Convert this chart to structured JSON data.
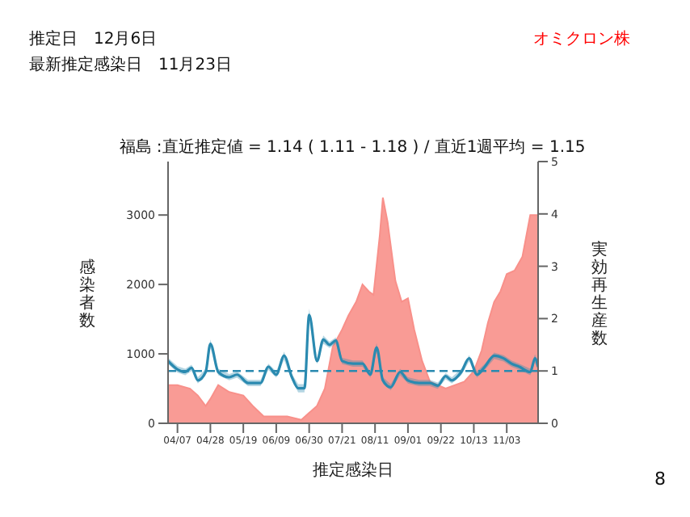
{
  "chart_data": {
    "type": "area",
    "title": "福島 :直近推定値 = 1.14 ( 1.11 - 1.18 ) / 直近1週平均 = 1.15",
    "xlabel": "推定感染日",
    "ylabel": "感染者数",
    "y2label": "実効再生産数",
    "annotations": [
      "推定日　12月6日",
      "最新推定感染日　11月23日",
      "オミクロン株",
      "8"
    ],
    "xlim": [
      "--04-01",
      "--11-23"
    ],
    "xticks": [
      {
        "value": "--04-07",
        "label": "04/07"
      },
      {
        "value": "--04-28",
        "label": "04/28"
      },
      {
        "value": "--05-19",
        "label": "05/19"
      },
      {
        "value": "--06-09",
        "label": "06/09"
      },
      {
        "value": "--06-30",
        "label": "06/30"
      },
      {
        "value": "--07-21",
        "label": "07/21"
      },
      {
        "value": "--08-11",
        "label": "08/11"
      },
      {
        "value": "--09-01",
        "label": "09/01"
      },
      {
        "value": "--09-22",
        "label": "09/22"
      },
      {
        "value": "--10-13",
        "label": "10/13"
      },
      {
        "value": "--11-03",
        "label": "11/03"
      }
    ],
    "ylim": [
      0,
      3770
    ],
    "yticks": [
      0,
      1000,
      2000,
      3000
    ],
    "y2lim": [
      0,
      5
    ],
    "y2ticks": [
      0,
      1,
      2,
      3,
      4,
      5
    ],
    "grid": false,
    "legend": false,
    "ref_lines": [
      {
        "axis": "y2",
        "value": 1,
        "color": "#2a8ab0",
        "line_style": "dashed"
      }
    ],
    "series": [
      {
        "color": "#f8908a",
        "x": [
          "--04-01",
          "--04-07",
          "--04-15",
          "--04-20",
          "--04-25",
          "--04-28",
          "--05-03",
          "--05-10",
          "--05-19",
          "--05-25",
          "--06-01",
          "--06-09",
          "--06-16",
          "--06-25",
          "--06-30",
          "--07-05",
          "--07-10",
          "--07-15",
          "--07-21",
          "--07-25",
          "--07-30",
          "--08-03",
          "--08-07",
          "--08-10",
          "--08-14",
          "--08-16",
          "--08-19",
          "--08-24",
          "--08-28",
          "--09-01",
          "--09-05",
          "--09-10",
          "--09-15",
          "--09-20",
          "--09-25",
          "--10-01",
          "--10-07",
          "--10-13",
          "--10-18",
          "--10-22",
          "--10-26",
          "--10-30",
          "--11-03",
          "--11-08",
          "--11-13",
          "--11-18",
          "--11-23"
        ],
        "values": [
          550,
          550,
          500,
          400,
          250,
          350,
          550,
          450,
          400,
          250,
          100,
          100,
          100,
          50,
          150,
          250,
          500,
          1100,
          1350,
          1550,
          1750,
          2000,
          1900,
          1850,
          2700,
          3250,
          2900,
          2050,
          1750,
          1800,
          1350,
          900,
          600,
          550,
          500,
          550,
          600,
          750,
          1050,
          1450,
          1750,
          1900,
          2150,
          2200,
          2400,
          3000,
          3000
        ]
      },
      {
        "type": "line",
        "axis": "y2",
        "color": "#2a8ab0",
        "x": [
          "--04-01",
          "--04-07",
          "--04-12",
          "--04-16",
          "--04-20",
          "--04-25",
          "--04-28",
          "--05-03",
          "--05-10",
          "--05-15",
          "--05-22",
          "--05-30",
          "--06-04",
          "--06-09",
          "--06-14",
          "--06-19",
          "--06-23",
          "--06-27",
          "--06-30",
          "--07-05",
          "--07-09",
          "--07-13",
          "--07-17",
          "--07-21",
          "--07-28",
          "--08-03",
          "--08-08",
          "--08-12",
          "--08-16",
          "--08-21",
          "--08-27",
          "--09-01",
          "--09-08",
          "--09-15",
          "--09-20",
          "--09-25",
          "--09-29",
          "--10-05",
          "--10-10",
          "--10-15",
          "--10-20",
          "--10-26",
          "--11-01",
          "--11-06",
          "--11-11",
          "--11-18",
          "--11-21",
          "--11-23"
        ],
        "values": [
          1.19,
          1.03,
          0.98,
          1.06,
          0.82,
          0.98,
          1.52,
          0.98,
          0.88,
          0.93,
          0.77,
          0.77,
          1.08,
          0.93,
          1.29,
          0.88,
          0.67,
          0.67,
          2.07,
          1.19,
          1.6,
          1.5,
          1.58,
          1.19,
          1.14,
          1.14,
          0.93,
          1.45,
          0.82,
          0.69,
          0.98,
          0.82,
          0.77,
          0.77,
          0.72,
          0.9,
          0.82,
          0.98,
          1.24,
          0.93,
          1.08,
          1.29,
          1.24,
          1.14,
          1.08,
          0.98,
          1.24,
          1.08
        ],
        "lower": [
          1.13,
          0.97,
          0.92,
          1.0,
          0.76,
          0.92,
          1.44,
          0.92,
          0.82,
          0.87,
          0.71,
          0.71,
          1.02,
          0.87,
          1.21,
          0.82,
          0.59,
          0.59,
          1.95,
          1.13,
          1.52,
          1.44,
          1.52,
          1.13,
          1.08,
          1.08,
          0.87,
          1.37,
          0.76,
          0.63,
          0.92,
          0.76,
          0.71,
          0.71,
          0.66,
          0.84,
          0.76,
          0.92,
          1.18,
          0.87,
          1.02,
          1.23,
          1.18,
          1.08,
          1.02,
          0.92,
          1.16,
          1.02
        ],
        "upper": [
          1.25,
          1.09,
          1.04,
          1.12,
          0.88,
          1.04,
          1.6,
          1.04,
          0.94,
          0.99,
          0.83,
          0.83,
          1.14,
          0.99,
          1.37,
          0.94,
          0.75,
          0.75,
          2.19,
          1.25,
          1.68,
          1.56,
          1.64,
          1.25,
          1.2,
          1.2,
          0.99,
          1.53,
          0.88,
          0.75,
          1.04,
          0.88,
          0.83,
          0.83,
          0.78,
          0.96,
          0.88,
          1.04,
          1.3,
          0.99,
          1.14,
          1.35,
          1.3,
          1.2,
          1.14,
          1.04,
          1.32,
          1.14
        ]
      }
    ]
  }
}
